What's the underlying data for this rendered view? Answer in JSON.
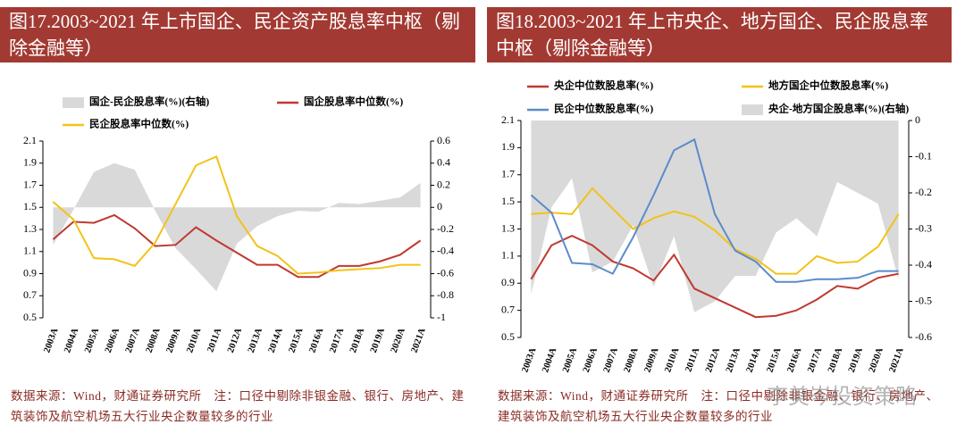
{
  "chart_data": [
    {
      "type": "line",
      "title": "图17.2003~2021 年上市国企、民企资产股息率中枢（剔除金融等）",
      "categories": [
        "2003A",
        "2004A",
        "2005A",
        "2006A",
        "2007A",
        "2008A",
        "2009A",
        "2010A",
        "2011A",
        "2012A",
        "2013A",
        "2014A",
        "2015A",
        "2016A",
        "2017A",
        "2018A",
        "2019A",
        "2020A",
        "2021A"
      ],
      "series": [
        {
          "name": "国企-民企股息率(%)(右轴)",
          "color": "#d9d9d9",
          "axis": "y2",
          "kind": "area",
          "values": [
            -0.34,
            -0.02,
            0.32,
            0.4,
            0.34,
            -0.03,
            -0.37,
            -0.56,
            -0.76,
            -0.33,
            -0.17,
            -0.08,
            -0.03,
            -0.04,
            0.04,
            0.03,
            0.06,
            0.09,
            0.22
          ]
        },
        {
          "name": "国企股息率中位数(%)",
          "color": "#c0392f",
          "kind": "line",
          "values": [
            1.21,
            1.37,
            1.36,
            1.43,
            1.31,
            1.15,
            1.16,
            1.32,
            1.2,
            1.09,
            0.98,
            0.98,
            0.87,
            0.87,
            0.97,
            0.97,
            1.01,
            1.07,
            1.2
          ]
        },
        {
          "name": "民企股息率中位数(%)",
          "color": "#f2c318",
          "kind": "line",
          "values": [
            1.55,
            1.39,
            1.04,
            1.03,
            0.97,
            1.18,
            1.53,
            1.88,
            1.96,
            1.42,
            1.15,
            1.06,
            0.9,
            0.91,
            0.93,
            0.94,
            0.95,
            0.98,
            0.98
          ]
        }
      ],
      "ylim": [
        0.5,
        2.1
      ],
      "yticks": [
        0.5,
        0.7,
        0.9,
        1.1,
        1.3,
        1.5,
        1.7,
        1.9,
        2.1
      ],
      "y2lim": [
        -1,
        0.6
      ],
      "y2ticks": [
        -1,
        -0.8,
        -0.6,
        -0.4,
        -0.2,
        0,
        0.2,
        0.4,
        0.6
      ],
      "source": "数据来源：Wind，财通证券研究所　注：口径中剔除非银金融、银行、房地产、建筑装饰及航空机场五大行业央企数量较多的行业"
    },
    {
      "type": "line",
      "title": "图18.2003~2021 年上市央企、地方国企、民企股息率中枢（剔除金融等）",
      "categories": [
        "2003A",
        "2004A",
        "2005A",
        "2006A",
        "2007A",
        "2008A",
        "2009A",
        "2010A",
        "2011A",
        "2012A",
        "2013A",
        "2014A",
        "2015A",
        "2016A",
        "2017A",
        "2018A",
        "2019A",
        "2020A",
        "2021A"
      ],
      "series": [
        {
          "name": "央企中位数股息率(%)",
          "color": "#c0392f",
          "kind": "line",
          "values": [
            0.93,
            1.18,
            1.25,
            1.18,
            1.06,
            1.01,
            0.92,
            1.11,
            0.86,
            0.79,
            0.72,
            0.65,
            0.66,
            0.7,
            0.78,
            0.88,
            0.86,
            0.94,
            0.97
          ]
        },
        {
          "name": "地方国企中位数股息率(%)",
          "color": "#f2c318",
          "kind": "line",
          "values": [
            1.41,
            1.42,
            1.41,
            1.6,
            1.45,
            1.3,
            1.38,
            1.43,
            1.39,
            1.29,
            1.15,
            1.08,
            0.97,
            0.97,
            1.1,
            1.05,
            1.06,
            1.17,
            1.41
          ]
        },
        {
          "name": "民企中位数股息率(%)",
          "color": "#5b8bc9",
          "kind": "line",
          "values": [
            1.55,
            1.42,
            1.05,
            1.04,
            0.97,
            1.24,
            1.55,
            1.88,
            1.96,
            1.41,
            1.14,
            1.06,
            0.91,
            0.91,
            0.93,
            0.93,
            0.94,
            0.99,
            0.99
          ]
        },
        {
          "name": "央企-地方国企股息率(%)(右轴)",
          "color": "#d9d9d9",
          "axis": "y2",
          "kind": "area",
          "values": [
            -0.48,
            -0.24,
            -0.16,
            -0.42,
            -0.39,
            -0.29,
            -0.46,
            -0.32,
            -0.53,
            -0.5,
            -0.43,
            -0.43,
            -0.31,
            -0.27,
            -0.32,
            -0.17,
            -0.2,
            -0.23,
            -0.44
          ]
        }
      ],
      "ylim": [
        0.5,
        2.1
      ],
      "yticks": [
        0.5,
        0.7,
        0.9,
        1.1,
        1.3,
        1.5,
        1.7,
        1.9,
        2.1
      ],
      "y2lim": [
        -0.6,
        0
      ],
      "y2ticks": [
        -0.6,
        -0.5,
        -0.4,
        -0.3,
        -0.2,
        -0.1,
        0
      ],
      "source": "数据来源：Wind，财通证券研究所　注：口径中剔除非银金融、银行、房地产、建筑装饰及航空机场五大行业央企数量较多的行业"
    }
  ],
  "watermark": "李美岑投资策略"
}
